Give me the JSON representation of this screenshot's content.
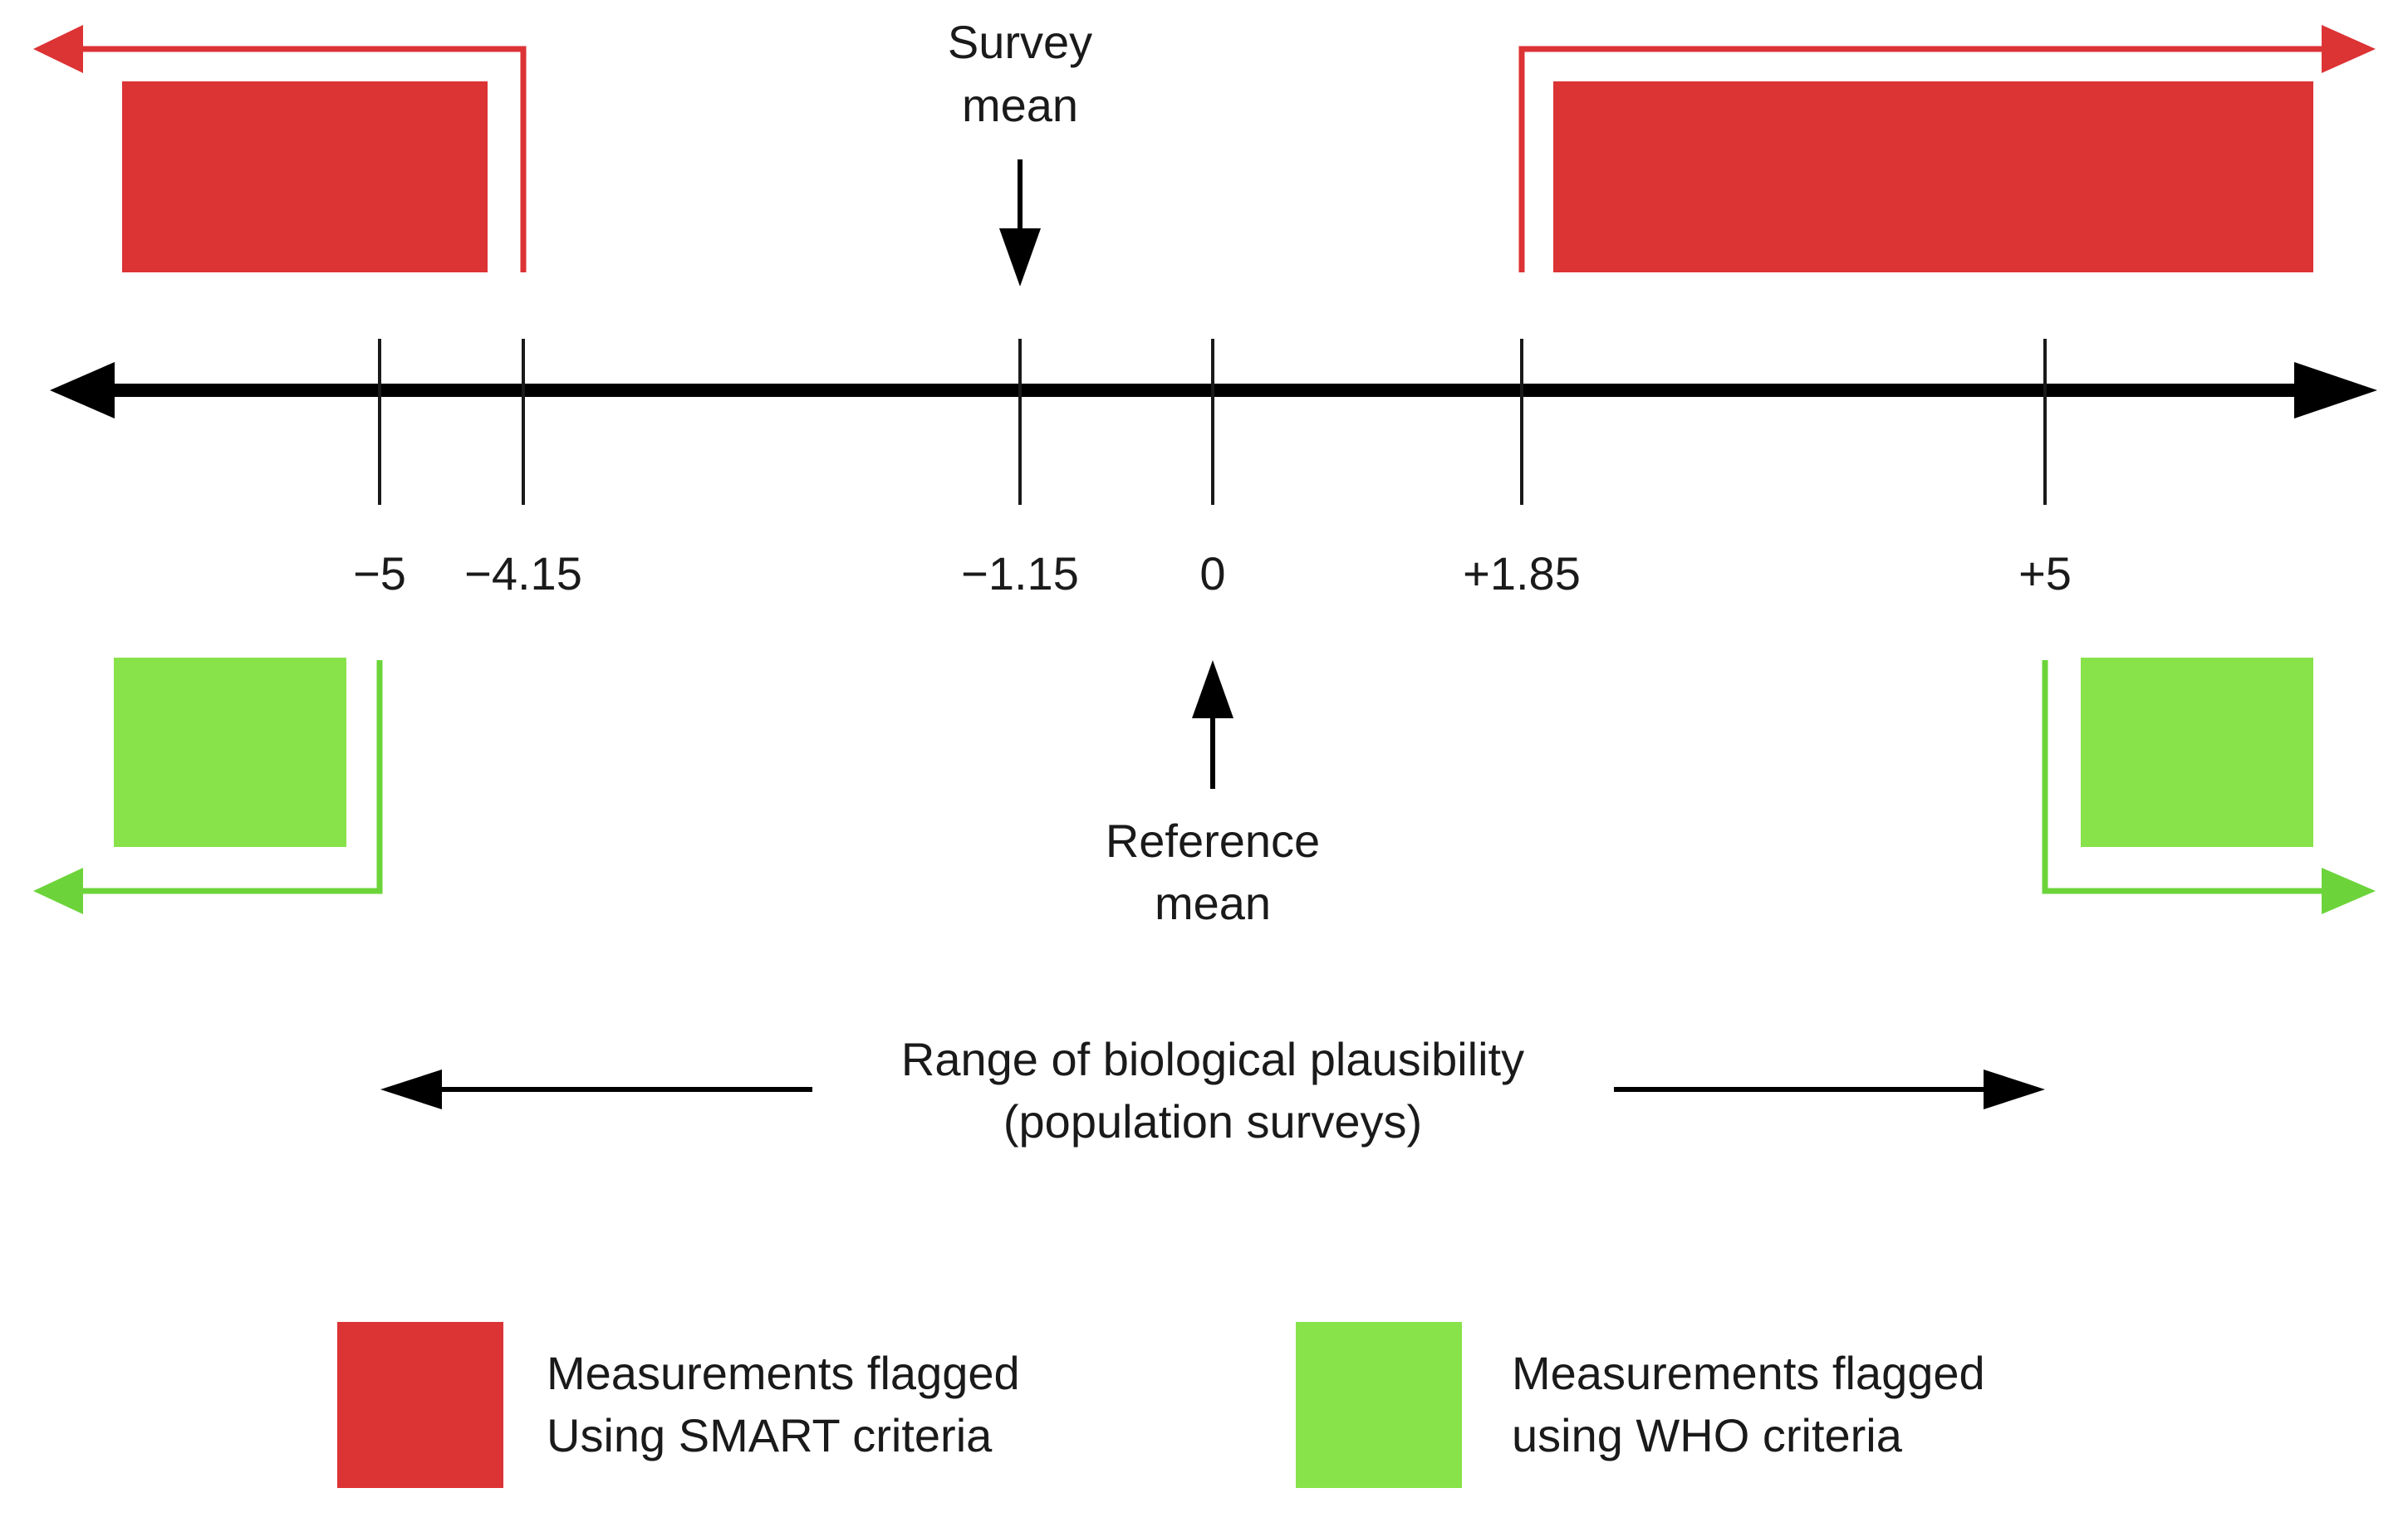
{
  "colors": {
    "smart_red": "#dc3335",
    "who_green": "#88e24a",
    "who_green_bracket": "#6cd43a",
    "axis": "#000000",
    "tick": "#1a1a1a",
    "text": "#1a1a1a"
  },
  "axis": {
    "ticks": [
      {
        "value": -5,
        "label": "−5"
      },
      {
        "value": -4.15,
        "label": "−4.15"
      },
      {
        "value": -1.15,
        "label": "−1.15"
      },
      {
        "value": 0,
        "label": "0"
      },
      {
        "value": 1.85,
        "label": "+1.85"
      },
      {
        "value": 5,
        "label": "+5"
      }
    ]
  },
  "annotations": {
    "survey_mean": {
      "value": -1.15,
      "line1": "Survey",
      "line2": "mean"
    },
    "reference_mean": {
      "value": 0,
      "line1": "Reference",
      "line2": "mean"
    }
  },
  "flag_ranges": {
    "smart": {
      "lower": -4.15,
      "upper": 1.85
    },
    "who": {
      "lower": -5,
      "upper": 5
    }
  },
  "plausibility": {
    "line1": "Range of biological plausibility",
    "line2": "(population surveys)",
    "from": -5,
    "to": 5
  },
  "legend": {
    "smart": {
      "line1": "Measurements flagged",
      "line2": "Using SMART criteria"
    },
    "who": {
      "line1": "Measurements flagged",
      "line2": "using WHO criteria"
    }
  }
}
